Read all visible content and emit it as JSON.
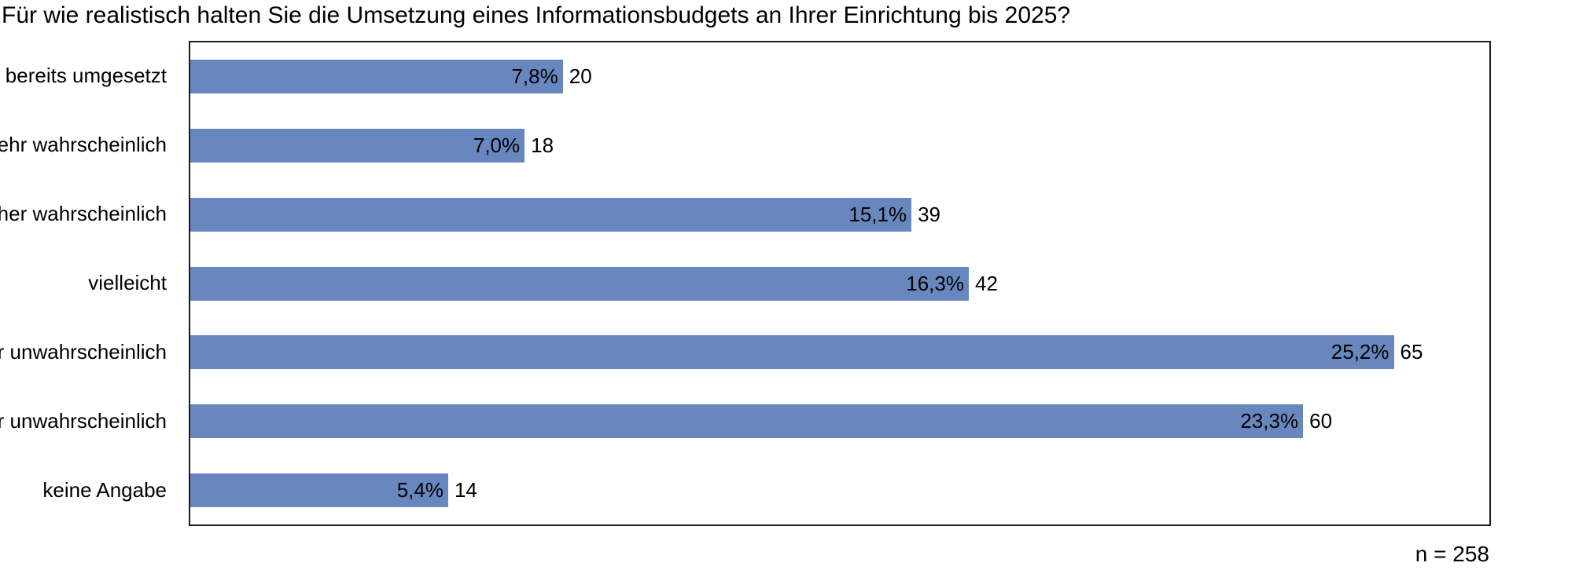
{
  "title": "Für wie realistisch halten Sie die Umsetzung eines Informationsbudgets an Ihrer Einrichtung bis 2025?",
  "footnote": "n = 258",
  "colors": {
    "bar": "#6787BE",
    "plot_border": "#1c1c1c",
    "background": "#ffffff",
    "text": "#000000"
  },
  "chart_data": {
    "type": "bar",
    "orientation": "horizontal",
    "title": "Für wie realistisch halten Sie die Umsetzung eines Informationsbudgets an Ihrer Einrichtung bis 2025?",
    "categories": [
      "ist bereits umgesetzt",
      "sehr wahrscheinlich",
      "eher wahrscheinlich",
      "vielleicht",
      "eher unwahrscheinlich",
      "sehr unwahrscheinlich",
      "keine Angabe"
    ],
    "values_percent": [
      7.8,
      7.0,
      15.1,
      16.3,
      25.2,
      23.3,
      5.4
    ],
    "counts": [
      20,
      18,
      39,
      42,
      65,
      60,
      14
    ],
    "percent_labels": [
      "7,8%",
      "7,0%",
      "15,1%",
      "16,3%",
      "25,2%",
      "23,3%",
      "5,4%"
    ],
    "count_labels": [
      "20",
      "18",
      "39",
      "42",
      "65",
      "60",
      "14"
    ],
    "n_total": 258,
    "xlabel": "",
    "ylabel": "",
    "xlim": [
      0,
      27.2
    ],
    "grid": false,
    "legend": false
  }
}
